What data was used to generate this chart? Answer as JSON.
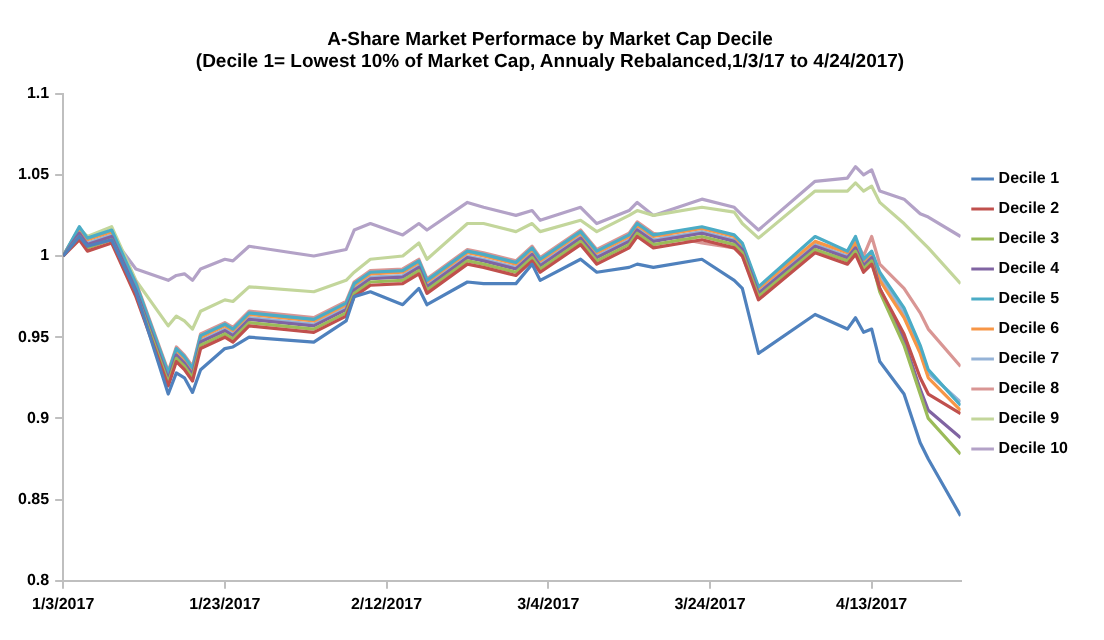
{
  "chart_data": {
    "type": "line",
    "title": "A-Share Market Performace by Market Cap Decile",
    "subtitle": "(Decile 1= Lowest 10% of Market Cap, Annualy Rebalanced,1/3/17 to 4/24/2017)",
    "x": [
      "2017-01-03",
      "2017-01-05",
      "2017-01-06",
      "2017-01-09",
      "2017-01-12",
      "2017-01-16",
      "2017-01-17",
      "2017-01-18",
      "2017-01-19",
      "2017-01-20",
      "2017-01-23",
      "2017-01-24",
      "2017-01-26",
      "2017-02-03",
      "2017-02-07",
      "2017-02-08",
      "2017-02-10",
      "2017-02-14",
      "2017-02-16",
      "2017-02-17",
      "2017-02-22",
      "2017-02-24",
      "2017-02-28",
      "2017-03-02",
      "2017-03-03",
      "2017-03-08",
      "2017-03-10",
      "2017-03-14",
      "2017-03-15",
      "2017-03-17",
      "2017-03-23",
      "2017-03-27",
      "2017-03-28",
      "2017-03-30",
      "2017-04-06",
      "2017-04-10",
      "2017-04-11",
      "2017-04-12",
      "2017-04-13",
      "2017-04-14",
      "2017-04-17",
      "2017-04-19",
      "2017-04-20",
      "2017-04-24"
    ],
    "series": [
      {
        "name": "Decile 1",
        "color": "#4f81bd",
        "values": [
          1.0,
          1.012,
          1.006,
          1.01,
          0.978,
          0.915,
          0.928,
          0.925,
          0.916,
          0.93,
          0.943,
          0.944,
          0.95,
          0.947,
          0.96,
          0.975,
          0.978,
          0.97,
          0.98,
          0.97,
          0.984,
          0.983,
          0.983,
          0.995,
          0.985,
          0.998,
          0.99,
          0.993,
          0.995,
          0.993,
          0.998,
          0.985,
          0.98,
          0.94,
          0.964,
          0.955,
          0.962,
          0.953,
          0.955,
          0.935,
          0.915,
          0.885,
          0.875,
          0.84
        ]
      },
      {
        "name": "Decile 2",
        "color": "#c0504d",
        "values": [
          1.0,
          1.01,
          1.003,
          1.008,
          0.975,
          0.92,
          0.935,
          0.93,
          0.923,
          0.943,
          0.95,
          0.947,
          0.957,
          0.953,
          0.963,
          0.975,
          0.982,
          0.983,
          0.989,
          0.977,
          0.995,
          0.993,
          0.988,
          0.997,
          0.99,
          1.007,
          0.995,
          1.005,
          1.012,
          1.005,
          1.01,
          1.005,
          1.0,
          0.973,
          1.002,
          0.995,
          1.001,
          0.99,
          0.995,
          0.98,
          0.952,
          0.925,
          0.915,
          0.903
        ]
      },
      {
        "name": "Decile 3",
        "color": "#9bbb59",
        "values": [
          1.0,
          1.012,
          1.005,
          1.01,
          0.977,
          0.922,
          0.937,
          0.932,
          0.925,
          0.945,
          0.952,
          0.949,
          0.959,
          0.955,
          0.965,
          0.977,
          0.984,
          0.985,
          0.991,
          0.979,
          0.997,
          0.995,
          0.99,
          0.999,
          0.992,
          1.009,
          0.997,
          1.007,
          1.014,
          1.007,
          1.012,
          1.007,
          1.002,
          0.975,
          1.004,
          0.997,
          1.003,
          0.992,
          0.997,
          0.978,
          0.945,
          0.915,
          0.9,
          0.878
        ]
      },
      {
        "name": "Decile 4",
        "color": "#8064a2",
        "values": [
          1.0,
          1.014,
          1.007,
          1.012,
          0.979,
          0.924,
          0.939,
          0.934,
          0.927,
          0.947,
          0.954,
          0.951,
          0.961,
          0.957,
          0.967,
          0.979,
          0.986,
          0.987,
          0.993,
          0.981,
          0.999,
          0.997,
          0.992,
          1.001,
          0.994,
          1.011,
          0.999,
          1.009,
          1.016,
          1.009,
          1.014,
          1.009,
          1.004,
          0.977,
          1.006,
          0.999,
          1.005,
          0.994,
          0.999,
          0.98,
          0.948,
          0.918,
          0.905,
          0.888
        ]
      },
      {
        "name": "Decile 5",
        "color": "#4bacc6",
        "values": [
          1.0,
          1.018,
          1.011,
          1.016,
          0.983,
          0.928,
          0.943,
          0.938,
          0.931,
          0.951,
          0.958,
          0.955,
          0.965,
          0.961,
          0.971,
          0.983,
          0.99,
          0.991,
          0.997,
          0.985,
          1.003,
          1.001,
          0.996,
          1.005,
          0.998,
          1.015,
          1.003,
          1.013,
          1.02,
          1.013,
          1.018,
          1.013,
          1.008,
          0.981,
          1.012,
          1.003,
          1.012,
          0.998,
          1.003,
          0.99,
          0.968,
          0.945,
          0.93,
          0.908
        ]
      },
      {
        "name": "Decile 6",
        "color": "#f79646",
        "values": [
          1.0,
          1.017,
          1.01,
          1.015,
          0.982,
          0.927,
          0.942,
          0.937,
          0.93,
          0.95,
          0.957,
          0.954,
          0.964,
          0.96,
          0.97,
          0.982,
          0.989,
          0.99,
          0.996,
          0.984,
          1.002,
          1.0,
          0.995,
          1.004,
          0.997,
          1.014,
          1.002,
          1.012,
          1.019,
          1.012,
          1.017,
          1.012,
          1.007,
          0.98,
          1.009,
          1.002,
          1.008,
          0.997,
          1.002,
          0.985,
          0.962,
          0.94,
          0.925,
          0.905
        ]
      },
      {
        "name": "Decile 7",
        "color": "#95b3d7",
        "values": [
          1.0,
          1.015,
          1.008,
          1.013,
          0.98,
          0.925,
          0.94,
          0.935,
          0.928,
          0.948,
          0.955,
          0.952,
          0.962,
          0.958,
          0.968,
          0.98,
          0.987,
          0.988,
          0.994,
          0.982,
          1.0,
          0.998,
          0.993,
          1.002,
          0.995,
          1.012,
          1.0,
          1.01,
          1.017,
          1.01,
          1.015,
          1.01,
          1.005,
          0.978,
          1.007,
          1.0,
          1.006,
          0.995,
          1.0,
          0.988,
          0.965,
          0.942,
          0.928,
          0.91
        ]
      },
      {
        "name": "Decile 8",
        "color": "#d99694",
        "values": [
          1.0,
          1.012,
          1.006,
          1.01,
          0.984,
          0.929,
          0.944,
          0.939,
          0.932,
          0.952,
          0.959,
          0.956,
          0.966,
          0.962,
          0.972,
          0.984,
          0.991,
          0.992,
          0.998,
          0.986,
          1.004,
          1.002,
          0.997,
          1.006,
          0.999,
          1.016,
          1.004,
          1.014,
          1.021,
          1.014,
          1.008,
          1.005,
          1.0,
          0.975,
          1.003,
          0.998,
          1.01,
          1.0,
          1.012,
          0.995,
          0.98,
          0.965,
          0.955,
          0.932
        ]
      },
      {
        "name": "Decile 9",
        "color": "#c3d69b",
        "values": [
          1.0,
          1.017,
          1.012,
          1.018,
          0.985,
          0.957,
          0.963,
          0.96,
          0.955,
          0.966,
          0.973,
          0.972,
          0.981,
          0.978,
          0.985,
          0.99,
          0.998,
          1.0,
          1.008,
          0.998,
          1.02,
          1.02,
          1.015,
          1.02,
          1.015,
          1.022,
          1.015,
          1.025,
          1.028,
          1.025,
          1.03,
          1.027,
          1.02,
          1.011,
          1.04,
          1.04,
          1.045,
          1.04,
          1.043,
          1.033,
          1.02,
          1.01,
          1.005,
          0.983
        ]
      },
      {
        "name": "Decile 10",
        "color": "#b3a2c7",
        "values": [
          1.0,
          1.012,
          1.007,
          1.012,
          0.992,
          0.985,
          0.988,
          0.989,
          0.985,
          0.992,
          0.998,
          0.997,
          1.006,
          1.0,
          1.004,
          1.016,
          1.02,
          1.013,
          1.02,
          1.016,
          1.033,
          1.03,
          1.025,
          1.028,
          1.022,
          1.03,
          1.02,
          1.028,
          1.033,
          1.025,
          1.035,
          1.03,
          1.025,
          1.016,
          1.046,
          1.048,
          1.055,
          1.05,
          1.053,
          1.04,
          1.035,
          1.026,
          1.024,
          1.012
        ]
      }
    ],
    "xlim": [
      "2017-01-03",
      "2017-04-24"
    ],
    "xticks": [
      {
        "value": "2017-01-03",
        "label": "1/3/2017"
      },
      {
        "value": "2017-01-23",
        "label": "1/23/2017"
      },
      {
        "value": "2017-02-12",
        "label": "2/12/2017"
      },
      {
        "value": "2017-03-04",
        "label": "3/4/2017"
      },
      {
        "value": "2017-03-24",
        "label": "3/24/2017"
      },
      {
        "value": "2017-04-13",
        "label": "4/13/2017"
      }
    ],
    "ylim": [
      0.8,
      1.1
    ],
    "yticks": [
      0.8,
      0.85,
      0.9,
      0.95,
      1,
      1.05,
      1.1
    ],
    "grid": false,
    "legend": "right",
    "marker": "none",
    "line_style": "solid"
  }
}
